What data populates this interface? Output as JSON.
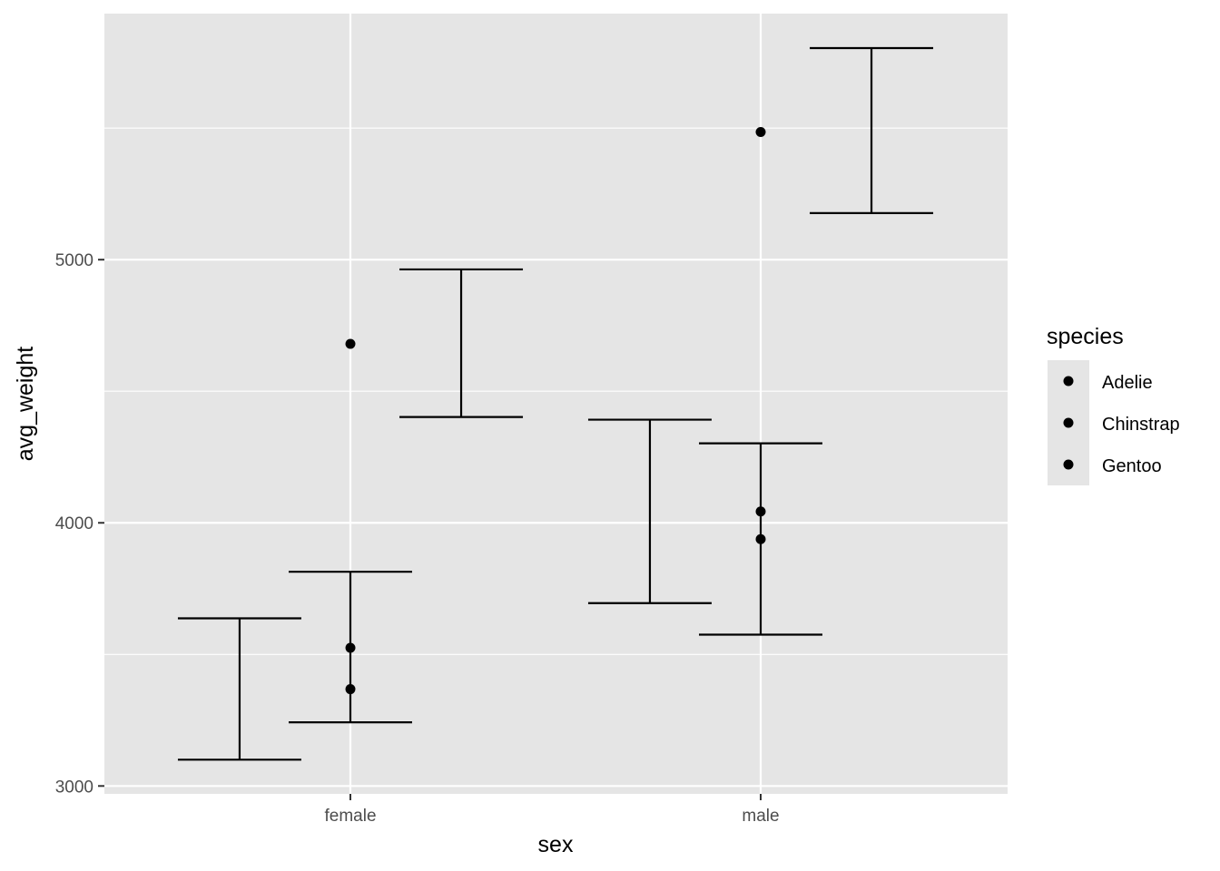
{
  "chart_data": {
    "type": "errorbar",
    "xlabel": "sex",
    "ylabel": "avg_weight",
    "categories": [
      "female",
      "male"
    ],
    "ylim": [
      2970,
      5935
    ],
    "yticks": [
      3000,
      4000,
      5000
    ],
    "ytick_labels": [
      "3000",
      "4000",
      "5000"
    ],
    "grid": true,
    "legend": {
      "title": "species",
      "position": "right",
      "entries": [
        "Adelie",
        "Chinstrap",
        "Gentoo"
      ]
    },
    "points": [
      {
        "x": "female",
        "y": 4680
      },
      {
        "x": "female",
        "y": 3525
      },
      {
        "x": "female",
        "y": 3368
      },
      {
        "x": "male",
        "y": 5485
      },
      {
        "x": "male",
        "y": 4043
      },
      {
        "x": "male",
        "y": 3938
      }
    ],
    "errorbars": [
      {
        "x": "female",
        "offset": -0.6,
        "ymin": 3100,
        "ymax": 3637
      },
      {
        "x": "female",
        "offset": 0,
        "ymin": 3242,
        "ymax": 3814
      },
      {
        "x": "female",
        "offset": 0.6,
        "ymin": 4402,
        "ymax": 4963
      },
      {
        "x": "male",
        "offset": -0.6,
        "ymin": 3695,
        "ymax": 4392
      },
      {
        "x": "male",
        "offset": 0,
        "ymin": 3575,
        "ymax": 4302
      },
      {
        "x": "male",
        "offset": 0.6,
        "ymin": 5177,
        "ymax": 5804
      }
    ],
    "colors": {
      "panel": "#e5e5e5",
      "grid": "#ffffff",
      "mark": "#000000"
    }
  }
}
